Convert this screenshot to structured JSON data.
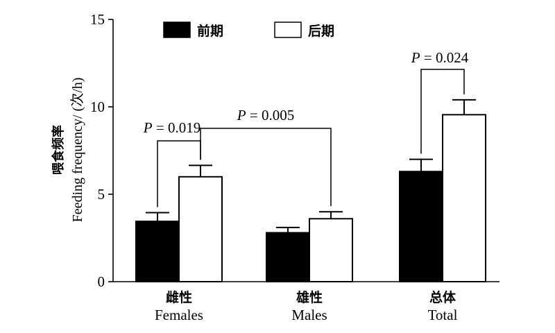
{
  "chart_data": {
    "type": "bar",
    "categories": [
      {
        "cn": "雌性",
        "en": "Females"
      },
      {
        "cn": "雄性",
        "en": "Males"
      },
      {
        "cn": "总体",
        "en": "Total"
      }
    ],
    "series": [
      {
        "name": "前期",
        "fill": "#000000",
        "values": [
          3.45,
          2.8,
          6.3
        ],
        "errors": [
          0.5,
          0.3,
          0.7
        ]
      },
      {
        "name": "后期",
        "fill": "#ffffff",
        "values": [
          6.0,
          3.6,
          9.55
        ],
        "errors": [
          0.65,
          0.4,
          0.85
        ]
      }
    ],
    "ylabel_cn": "喂食频率",
    "ylabel_en": "Feeding frequency/ (次/h)",
    "ylim": [
      0,
      15
    ],
    "yticks": [
      0,
      5,
      10,
      15
    ],
    "legend_position": "top-left",
    "annotations": [
      {
        "p_italic": "P",
        "text": " = 0.019",
        "from": [
          0,
          0
        ],
        "to": [
          0,
          1
        ]
      },
      {
        "p_italic": "P",
        "text": " = 0.005",
        "from": [
          0,
          1
        ],
        "to": [
          1,
          1
        ]
      },
      {
        "p_italic": "P",
        "text": " = 0.024",
        "from": [
          2,
          0
        ],
        "to": [
          2,
          1
        ]
      }
    ],
    "grid": false
  }
}
